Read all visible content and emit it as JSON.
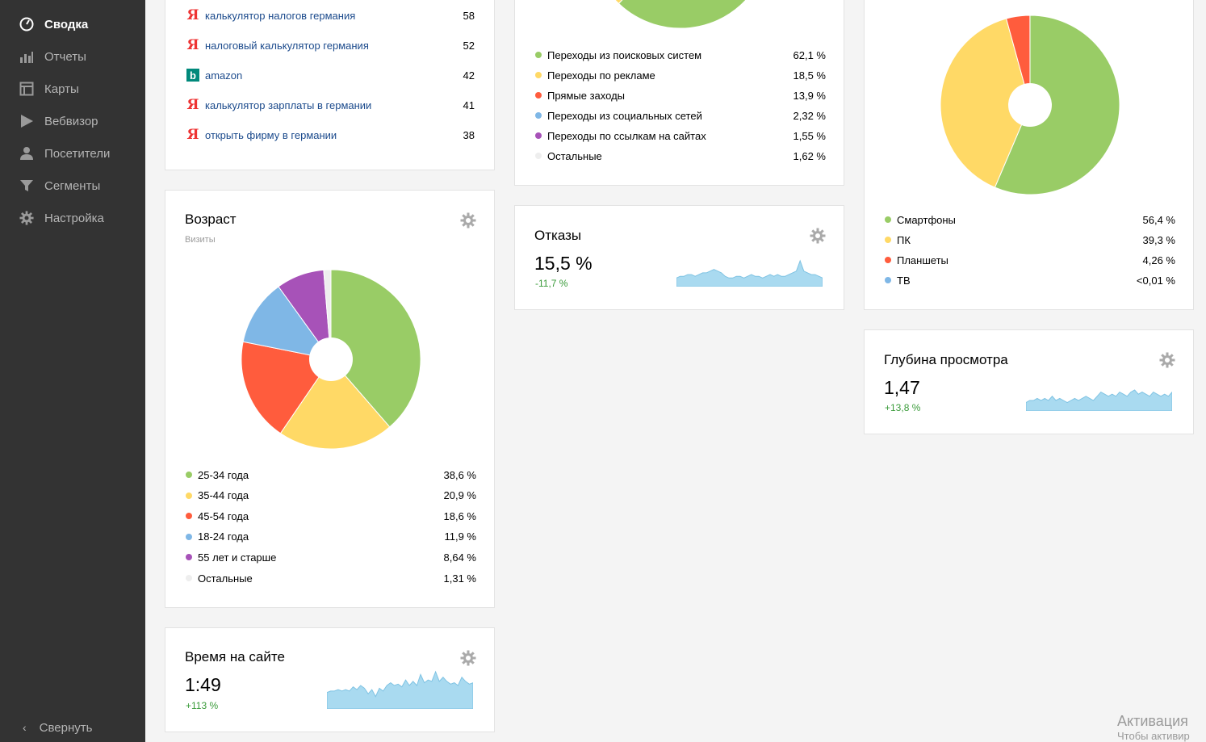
{
  "sidebar": {
    "items": [
      {
        "label": "Сводка",
        "icon": "dashboard-icon",
        "active": true
      },
      {
        "label": "Отчеты",
        "icon": "bar-chart-icon",
        "active": false
      },
      {
        "label": "Карты",
        "icon": "map-icon",
        "active": false
      },
      {
        "label": "Вебвизор",
        "icon": "play-icon",
        "active": false
      },
      {
        "label": "Посетители",
        "icon": "user-icon",
        "active": false
      },
      {
        "label": "Сегменты",
        "icon": "filter-icon",
        "active": false
      },
      {
        "label": "Настройка",
        "icon": "gear-icon",
        "active": false
      }
    ],
    "collapse_label": "Свернуть"
  },
  "queries": {
    "rows": [
      {
        "engine": "yandex-icon",
        "text": "калькулятор налогов германия",
        "value": "58"
      },
      {
        "engine": "yandex-icon",
        "text": "налоговый калькулятор германия",
        "value": "52"
      },
      {
        "engine": "bing-icon",
        "text": "amazon",
        "value": "42"
      },
      {
        "engine": "yandex-icon",
        "text": "калькулятор зарплаты в германии",
        "value": "41"
      },
      {
        "engine": "yandex-icon",
        "text": "открыть фирму в германии",
        "value": "38"
      }
    ]
  },
  "sources": {
    "legend": [
      {
        "label": "Переходы из поисковых систем",
        "value": "62,1 %",
        "color": "#99cc66"
      },
      {
        "label": "Переходы по рекламе",
        "value": "18,5 %",
        "color": "#ffd966"
      },
      {
        "label": "Прямые заходы",
        "value": "13,9 %",
        "color": "#ff5c3d"
      },
      {
        "label": "Переходы из социальных сетей",
        "value": "2,32 %",
        "color": "#7fb7e6"
      },
      {
        "label": "Переходы по ссылкам на сайтах",
        "value": "1,55 %",
        "color": "#a752b8"
      },
      {
        "label": "Остальные",
        "value": "1,62 %",
        "color": "#eeeeee"
      }
    ]
  },
  "age": {
    "title": "Возраст",
    "subtitle": "Визиты",
    "legend": [
      {
        "label": "25-34 года",
        "value": "38,6 %",
        "color": "#99cc66"
      },
      {
        "label": "35-44 года",
        "value": "20,9 %",
        "color": "#ffd966"
      },
      {
        "label": "45-54 года",
        "value": "18,6 %",
        "color": "#ff5c3d"
      },
      {
        "label": "18-24 года",
        "value": "11,9 %",
        "color": "#7fb7e6"
      },
      {
        "label": "55 лет и старше",
        "value": "8,64 %",
        "color": "#a752b8"
      },
      {
        "label": "Остальные",
        "value": "1,31 %",
        "color": "#eeeeee"
      }
    ]
  },
  "devices": {
    "legend": [
      {
        "label": "Смартфоны",
        "value": "56,4 %",
        "color": "#99cc66"
      },
      {
        "label": "ПК",
        "value": "39,3 %",
        "color": "#ffd966"
      },
      {
        "label": "Планшеты",
        "value": "4,26 %",
        "color": "#ff5c3d"
      },
      {
        "label": "ТВ",
        "value": "<0,01 %",
        "color": "#7fb7e6"
      }
    ]
  },
  "bounce": {
    "title": "Отказы",
    "value": "15,5 %",
    "delta": "-11,7 %"
  },
  "depth": {
    "title": "Глубина просмотра",
    "value": "1,47",
    "delta": "+13,8 %"
  },
  "time": {
    "title": "Время на сайте",
    "value": "1:49",
    "delta": "+113 %"
  },
  "activation": {
    "line1": "Активация",
    "line2": "Чтобы активир"
  },
  "colors": {
    "sidebar_bg": "#333333",
    "link": "#1b4a8c",
    "positive": "#3a9b3a",
    "spark_fill": "#a9daf0"
  },
  "chart_data": [
    {
      "type": "pie",
      "name": "age",
      "categories": [
        "25-34 года",
        "35-44 года",
        "45-54 года",
        "18-24 года",
        "55 лет и старше",
        "Остальные"
      ],
      "values": [
        38.6,
        20.9,
        18.6,
        11.9,
        8.64,
        1.31
      ],
      "colors": [
        "#99cc66",
        "#ffd966",
        "#ff5c3d",
        "#7fb7e6",
        "#a752b8",
        "#eeeeee"
      ]
    },
    {
      "type": "pie",
      "name": "devices",
      "categories": [
        "Смартфоны",
        "ПК",
        "Планшеты",
        "ТВ"
      ],
      "values": [
        56.4,
        39.3,
        4.26,
        0.01
      ],
      "colors": [
        "#99cc66",
        "#ffd966",
        "#ff5c3d",
        "#7fb7e6"
      ]
    },
    {
      "type": "pie",
      "name": "sources",
      "categories": [
        "Переходы из поисковых систем",
        "Переходы по рекламе",
        "Прямые заходы",
        "Переходы из социальных сетей",
        "Переходы по ссылкам на сайтах",
        "Остальные"
      ],
      "values": [
        62.1,
        18.5,
        13.9,
        2.32,
        1.55,
        1.62
      ],
      "colors": [
        "#99cc66",
        "#ffd966",
        "#ff5c3d",
        "#7fb7e6",
        "#a752b8",
        "#eeeeee"
      ]
    },
    {
      "type": "area",
      "name": "bounce-sparkline",
      "values": [
        5,
        6,
        6,
        7,
        7,
        6,
        7,
        8,
        8,
        9,
        10,
        9,
        8,
        6,
        5,
        5,
        6,
        6,
        5,
        6,
        7,
        6,
        6,
        5,
        6,
        7,
        6,
        7,
        6,
        6,
        7,
        8,
        9,
        15,
        9,
        8,
        7,
        7,
        6,
        5
      ]
    },
    {
      "type": "area",
      "name": "depth-sparkline",
      "values": [
        4,
        5,
        5,
        6,
        5,
        6,
        5,
        7,
        5,
        6,
        5,
        4,
        5,
        6,
        5,
        6,
        7,
        6,
        5,
        7,
        9,
        8,
        7,
        8,
        7,
        9,
        8,
        7,
        9,
        10,
        8,
        9,
        8,
        7,
        9,
        8,
        7,
        8,
        7,
        9
      ]
    },
    {
      "type": "area",
      "name": "time-sparkline",
      "values": [
        12,
        13,
        13,
        14,
        13,
        14,
        13,
        16,
        14,
        17,
        15,
        11,
        14,
        9,
        15,
        13,
        17,
        19,
        17,
        18,
        16,
        21,
        17,
        20,
        17,
        25,
        19,
        21,
        20,
        27,
        20,
        23,
        20,
        18,
        19,
        17,
        23,
        20,
        18,
        19
      ]
    }
  ]
}
